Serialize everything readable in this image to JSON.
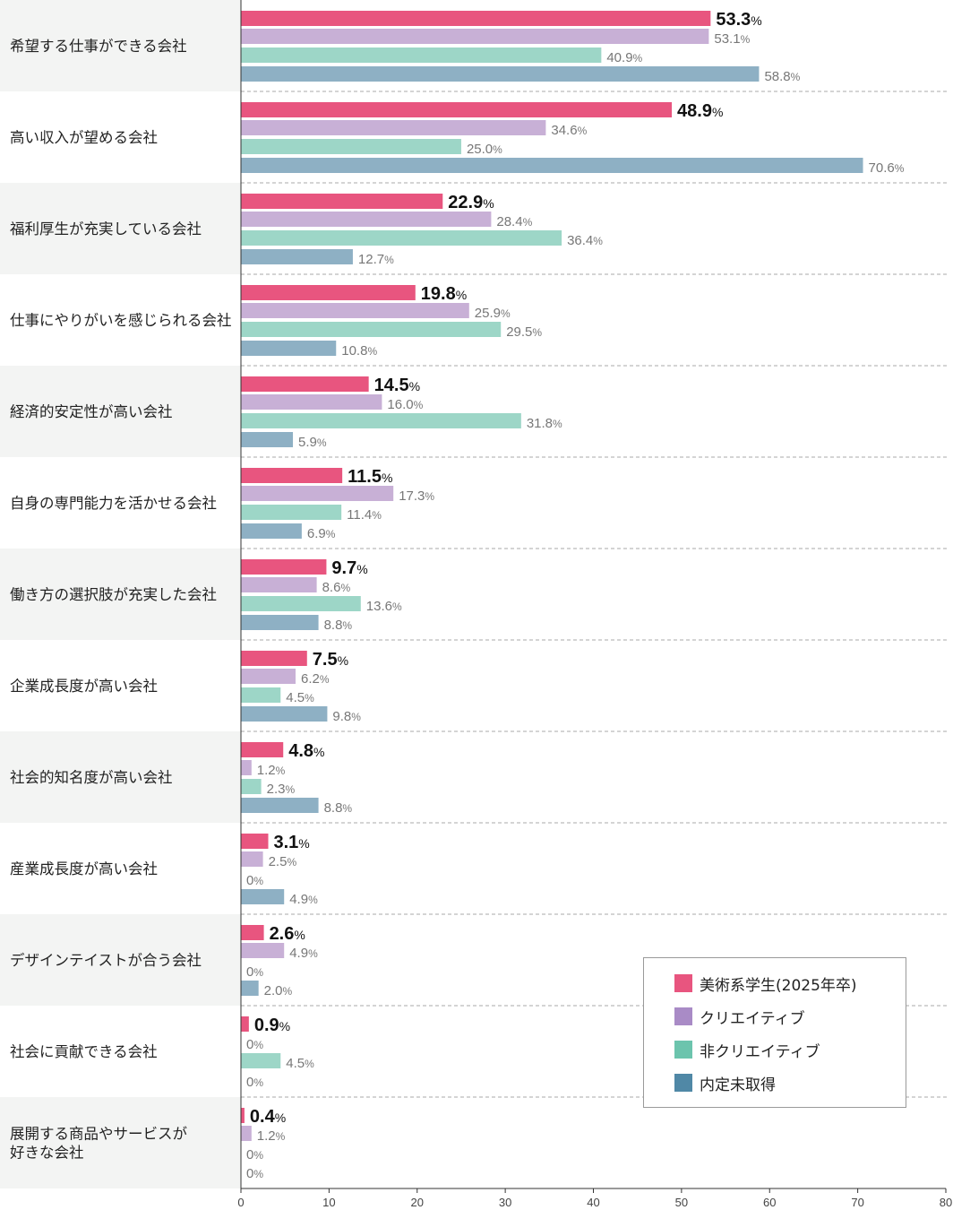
{
  "chart_data": {
    "type": "bar",
    "orientation": "horizontal",
    "categories": [
      "希望する仕事ができる会社",
      "高い収入が望める会社",
      "福利厚生が充実している会社",
      "仕事にやりがいを感じられる会社",
      "経済的安定性が高い会社",
      "自身の専門能力を活かせる会社",
      "働き方の選択肢が充実した会社",
      "企業成長度が高い会社",
      "社会的知名度が高い会社",
      "産業成長度が高い会社",
      "デザインテイストが合う会社",
      "社会に貢献できる会社",
      "展開する商品やサービスが好きな会社"
    ],
    "category_lines": [
      [
        "希望する仕事ができる会社"
      ],
      [
        "高い収入が望める会社"
      ],
      [
        "福利厚生が充実している会社"
      ],
      [
        "仕事にやりがいを感じられる会社"
      ],
      [
        "経済的安定性が高い会社"
      ],
      [
        "自身の専門能力を活かせる会社"
      ],
      [
        "働き方の選択肢が充実した会社"
      ],
      [
        "企業成長度が高い会社"
      ],
      [
        "社会的知名度が高い会社"
      ],
      [
        "産業成長度が高い会社"
      ],
      [
        "デザインテイストが合う会社"
      ],
      [
        "社会に貢献できる会社"
      ],
      [
        "展開する商品やサービスが",
        "好きな会社"
      ]
    ],
    "series": [
      {
        "name": "美術系学生(2025年卒)",
        "color": "#e8557f",
        "emphasis": true,
        "values": [
          53.3,
          48.9,
          22.9,
          19.8,
          14.5,
          11.5,
          9.7,
          7.5,
          4.8,
          3.1,
          2.6,
          0.9,
          0.4
        ],
        "labels": [
          "53.3",
          "48.9",
          "22.9",
          "19.8",
          "14.5",
          "11.5",
          "9.7",
          "7.5",
          "4.8",
          "3.1",
          "2.6",
          "0.9",
          "0.4"
        ]
      },
      {
        "name": "クリエイティブ",
        "color": "#c8b0d6",
        "emphasis": false,
        "values": [
          53.1,
          34.6,
          28.4,
          25.9,
          16.0,
          17.3,
          8.6,
          6.2,
          1.2,
          2.5,
          4.9,
          0,
          1.2
        ],
        "labels": [
          "53.1",
          "34.6",
          "28.4",
          "25.9",
          "16.0",
          "17.3",
          "8.6",
          "6.2",
          "1.2",
          "2.5",
          "4.9",
          "0",
          "1.2"
        ]
      },
      {
        "name": "非クリエイティブ",
        "color": "#9dd6c7",
        "emphasis": false,
        "values": [
          40.9,
          25.0,
          36.4,
          29.5,
          31.8,
          11.4,
          13.6,
          4.5,
          2.3,
          0,
          0,
          4.5,
          0
        ],
        "labels": [
          "40.9",
          "25.0",
          "36.4",
          "29.5",
          "31.8",
          "11.4",
          "13.6",
          "4.5",
          "2.3",
          "0",
          "0",
          "4.5",
          "0"
        ]
      },
      {
        "name": "内定未取得",
        "color": "#8eb0c4",
        "emphasis": false,
        "values": [
          58.8,
          70.6,
          12.7,
          10.8,
          5.9,
          6.9,
          8.8,
          9.8,
          8.8,
          4.9,
          2.0,
          0,
          0
        ],
        "labels": [
          "58.8",
          "70.6",
          "12.7",
          "10.8",
          "5.9",
          "6.9",
          "8.8",
          "9.8",
          "8.8",
          "4.9",
          "2.0",
          "0",
          "0"
        ]
      }
    ],
    "unit": "%",
    "xlim": [
      0,
      80
    ],
    "xticks": [
      "0",
      "10",
      "20",
      "30",
      "40",
      "50",
      "60",
      "70",
      "80"
    ],
    "legend": [
      {
        "label": "美術系学生(2025年卒)",
        "color": "#e8557f"
      },
      {
        "label": "クリエイティブ",
        "color": "#a98bc6"
      },
      {
        "label": "非クリエイティブ",
        "color": "#6cc4ad"
      },
      {
        "label": "内定未取得",
        "color": "#5088a6"
      }
    ],
    "legend_position": "bottom-right",
    "colors": {
      "band": "#f3f4f3",
      "axis": "#333333",
      "separator": "#aaaaaa",
      "muted_text": "#777777",
      "bold_text": "#111111"
    }
  }
}
